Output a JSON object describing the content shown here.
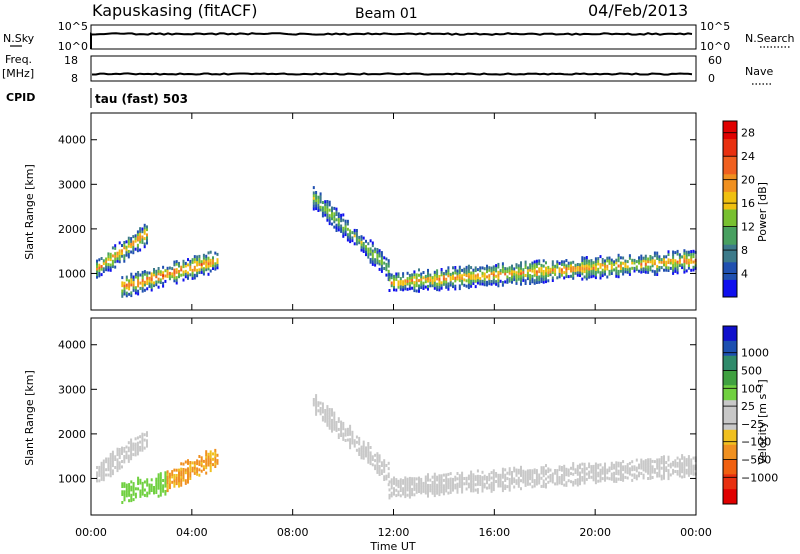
{
  "header": {
    "site": "Kapuskasing (fitACF)",
    "beam": "Beam 01",
    "date": "04/Feb/2013"
  },
  "strip_noise": {
    "left_label": "N.Sky",
    "right_label": "N.Search",
    "left_ticks": [
      "10^5",
      "10^0"
    ],
    "right_ticks": [
      "10^5",
      "10^0"
    ]
  },
  "strip_freq": {
    "left_label_1": "Freq.",
    "left_label_2": "[MHz]",
    "right_label": "Nave",
    "left_ticks": [
      "18",
      "8"
    ],
    "right_ticks": [
      "60",
      "0"
    ]
  },
  "cpid": {
    "label": "CPID",
    "value": "tau (fast) 503"
  },
  "chart_data": [
    {
      "type": "heatmap",
      "parameter": "power",
      "ylabel": "Slant Range [km]",
      "xlabel": "Time UT",
      "x_ticks": [
        "00:00",
        "04:00",
        "08:00",
        "12:00",
        "16:00",
        "20:00",
        "00:00"
      ],
      "x_range_hours": [
        0,
        24
      ],
      "y_ticks": [
        1000,
        2000,
        3000,
        4000
      ],
      "ylim": [
        180,
        4600
      ],
      "colorbar": {
        "label": "Power [dB]",
        "ticks": [
          "4",
          "8",
          "12",
          "16",
          "20",
          "24",
          "28"
        ],
        "range": [
          0,
          30
        ],
        "colors": [
          "#1010ee",
          "#2050b0",
          "#3c7a8a",
          "#48a060",
          "#78c030",
          "#f0c010",
          "#f09020",
          "#f06020",
          "#e83010",
          "#e00000"
        ]
      },
      "features": [
        {
          "start_h": 0.2,
          "end_h": 2.2,
          "from_km": 1100,
          "to_km": 1900,
          "peak_db": 20
        },
        {
          "start_h": 1.2,
          "end_h": 5.0,
          "from_km": 700,
          "to_km": 1300,
          "peak_db": 22
        },
        {
          "start_h": 8.8,
          "end_h": 11.8,
          "from_km": 2700,
          "to_km": 1100,
          "peak_db": 14
        },
        {
          "start_h": 11.8,
          "end_h": 24.0,
          "from_km": 800,
          "to_km": 1300,
          "peak_db": 20
        }
      ]
    },
    {
      "type": "heatmap",
      "parameter": "velocity",
      "ylabel": "Slant Range [km]",
      "xlabel": "Time UT",
      "x_ticks": [
        "00:00",
        "04:00",
        "08:00",
        "12:00",
        "16:00",
        "20:00",
        "00:00"
      ],
      "x_range_hours": [
        0,
        24
      ],
      "y_ticks": [
        1000,
        2000,
        3000,
        4000
      ],
      "ylim": [
        180,
        4600
      ],
      "colorbar": {
        "label": "Velocity [m s⁻¹]",
        "ticks": [
          "1000",
          "500",
          "100",
          "25",
          "−25",
          "−100",
          "−500",
          "−1000"
        ],
        "colors": [
          "#1010cc",
          "#1c50b0",
          "#2f8a6a",
          "#3fa040",
          "#70d040",
          "#c8c8c8",
          "#c8c8c8",
          "#f0c020",
          "#f09020",
          "#f06010",
          "#e83010",
          "#e00000"
        ]
      },
      "features": [
        {
          "start_h": 0.2,
          "end_h": 2.2,
          "from_km": 1100,
          "to_km": 1900,
          "velocity": 0
        },
        {
          "start_h": 1.2,
          "end_h": 3.0,
          "from_km": 700,
          "to_km": 900,
          "velocity": 150
        },
        {
          "start_h": 3.0,
          "end_h": 5.0,
          "from_km": 950,
          "to_km": 1500,
          "velocity": -200
        },
        {
          "start_h": 8.8,
          "end_h": 11.8,
          "from_km": 2700,
          "to_km": 1100,
          "velocity": 0
        },
        {
          "start_h": 11.8,
          "end_h": 24.0,
          "from_km": 800,
          "to_km": 1300,
          "velocity": 0
        }
      ]
    }
  ]
}
